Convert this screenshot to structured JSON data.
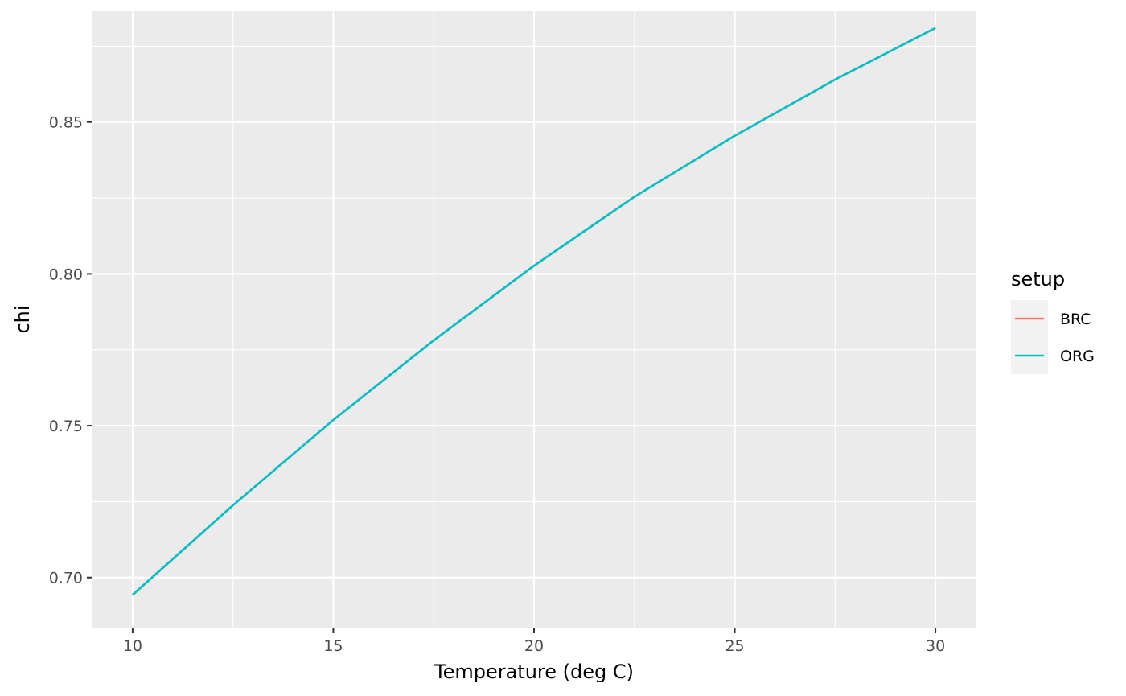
{
  "chart_data": {
    "type": "line",
    "title": "",
    "xlabel": "Temperature (deg C)",
    "ylabel": "chi",
    "xlim": [
      9,
      31
    ],
    "ylim": [
      0.6835,
      0.8865
    ],
    "x_ticks": [
      10,
      15,
      20,
      25,
      30
    ],
    "y_ticks": [
      0.7,
      0.75,
      0.8,
      0.85
    ],
    "y_tick_labels": [
      "0.70",
      "0.75",
      "0.80",
      "0.85"
    ],
    "grid": true,
    "background": "#EBEBEB",
    "legend": {
      "title": "setup",
      "position": "right",
      "entries": [
        {
          "name": "BRC",
          "color": "#F8766D"
        },
        {
          "name": "ORG",
          "color": "#00BFC4"
        }
      ]
    },
    "series": [
      {
        "name": "BRC",
        "color": "#F8766D",
        "x": [
          10,
          12.5,
          15,
          17.5,
          20,
          22.5,
          25,
          27.5,
          30
        ],
        "y": [
          0.6943,
          0.7238,
          0.7519,
          0.7781,
          0.8027,
          0.8254,
          0.8455,
          0.864,
          0.881
        ]
      },
      {
        "name": "ORG",
        "color": "#00BFC4",
        "x": [
          10,
          12.5,
          15,
          17.5,
          20,
          22.5,
          25,
          27.5,
          30
        ],
        "y": [
          0.6943,
          0.7238,
          0.7519,
          0.7781,
          0.8027,
          0.8254,
          0.8455,
          0.864,
          0.881
        ]
      }
    ]
  }
}
